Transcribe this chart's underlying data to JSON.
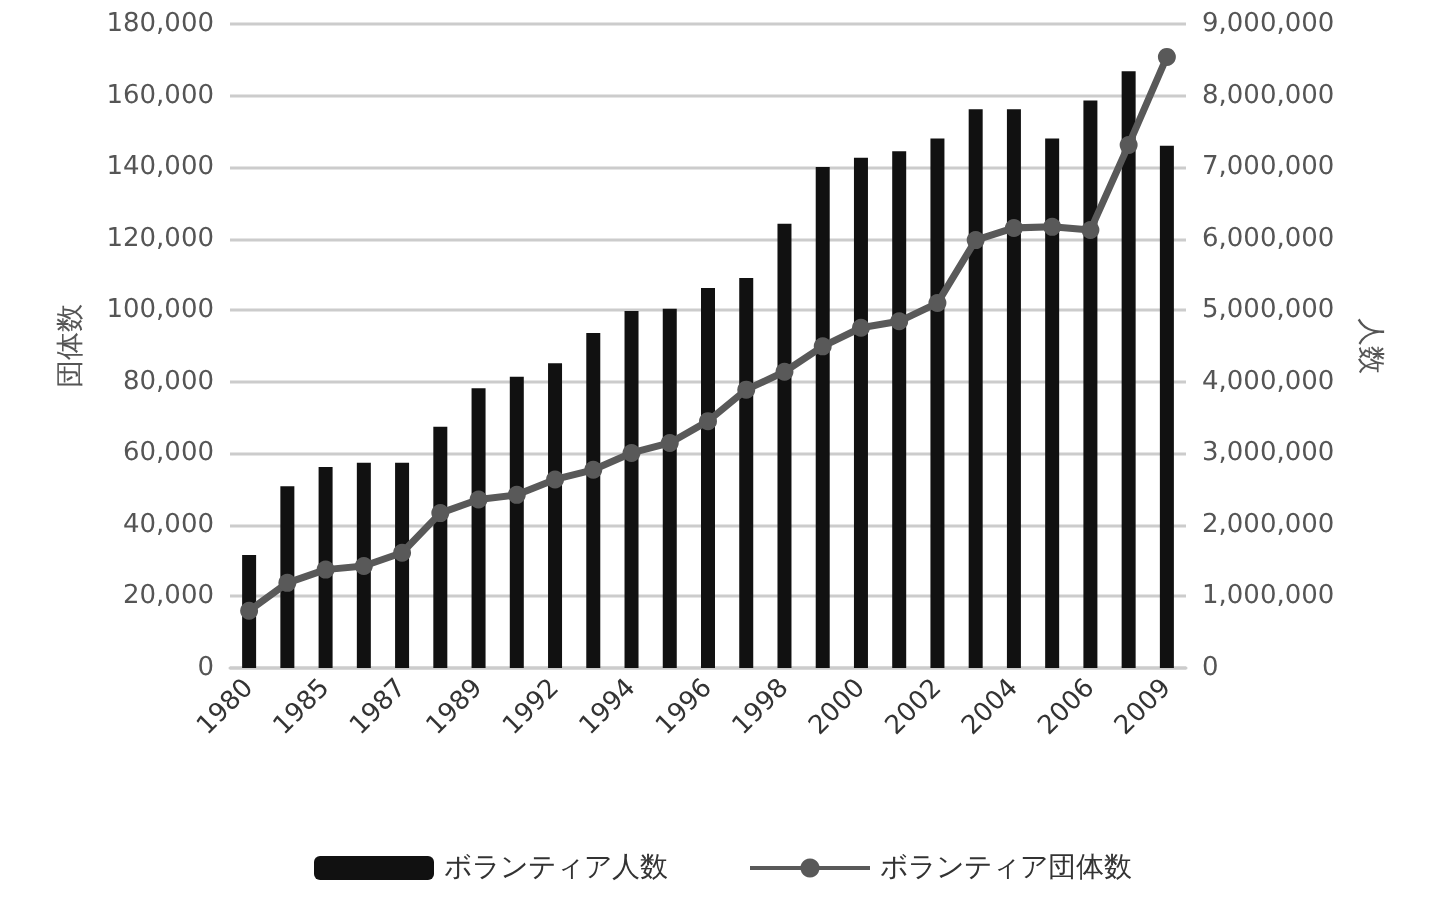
{
  "chart_data": {
    "type": "bar",
    "ylabel": "団体数",
    "y2label": "人数",
    "categories": [
      "1980",
      null,
      "1985",
      null,
      "1987",
      null,
      "1989",
      null,
      "1992",
      null,
      "1994",
      null,
      "1996",
      null,
      "1998",
      null,
      "2000",
      null,
      "2002",
      null,
      "2004",
      null,
      "2006",
      null,
      "2009"
    ],
    "series": [
      {
        "name": "ボランティア人数",
        "axis": "y2",
        "color": "#111111",
        "values": [
          1580000,
          2540000,
          2810000,
          2870000,
          2870000,
          3370000,
          3910000,
          4070000,
          4260000,
          4680000,
          4990000,
          5020000,
          5310000,
          5450000,
          6210000,
          7000000,
          7130000,
          7220000,
          7400000,
          7810000,
          7810000,
          7400000,
          7930000,
          8340000,
          7300000
        ]
      },
      {
        "name": "ボランティア団体数",
        "type": "line",
        "axis": "y",
        "color": "#595959",
        "marker": "circle",
        "values": [
          16000,
          23800,
          27500,
          28500,
          32200,
          43300,
          47100,
          48400,
          52700,
          55400,
          60100,
          62900,
          69000,
          77800,
          82800,
          89900,
          95100,
          96900,
          102000,
          119600,
          123000,
          123300,
          122400,
          146200,
          170800
        ]
      }
    ],
    "ylim": [
      0,
      180000
    ],
    "yticks": [
      0,
      {
        "value": 20000,
        "label": "20,000"
      },
      {
        "value": 40000,
        "label": "40,000"
      },
      {
        "value": 60000,
        "label": "60,000"
      },
      {
        "value": 80000,
        "label": "80,000"
      },
      {
        "value": 100000,
        "label": "100,000"
      },
      {
        "value": 120000,
        "label": "120,000"
      },
      {
        "value": 140000,
        "label": "140,000"
      },
      {
        "value": 160000,
        "label": "160,000"
      },
      {
        "value": 180000,
        "label": "180,000"
      }
    ],
    "y2lim": [
      0,
      9000000
    ],
    "y2ticks": [
      0,
      {
        "value": 1000000,
        "label": "1,000,000"
      },
      {
        "value": 2000000,
        "label": "2,000,000"
      },
      {
        "value": 3000000,
        "label": "3,000,000"
      },
      {
        "value": 4000000,
        "label": "4,000,000"
      },
      {
        "value": 5000000,
        "label": "5,000,000"
      },
      {
        "value": 6000000,
        "label": "6,000,000"
      },
      {
        "value": 7000000,
        "label": "7,000,000"
      },
      {
        "value": 8000000,
        "label": "8,000,000"
      },
      {
        "value": 9000000,
        "label": "9,000,000"
      }
    ],
    "grid": "y",
    "legend": "bottom"
  }
}
